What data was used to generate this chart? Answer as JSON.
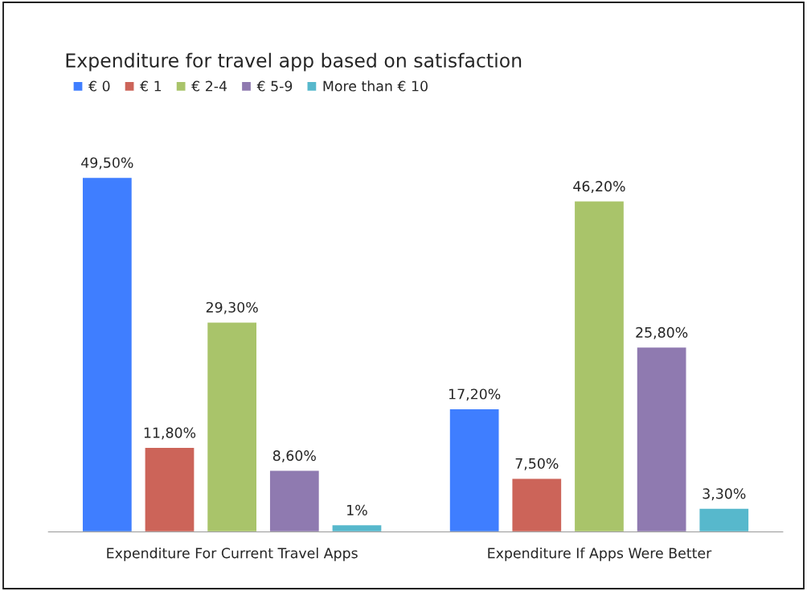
{
  "chart_data": {
    "type": "bar",
    "title": "Expenditure for travel app based on satisfaction",
    "categories": [
      "Expenditure For Current Travel Apps",
      "Expenditure If Apps Were Better"
    ],
    "series": [
      {
        "name": "€ 0",
        "color": "#3f7eff",
        "values": [
          49.5,
          17.2
        ],
        "value_labels": [
          "49,50%",
          "17,20%"
        ]
      },
      {
        "name": "€ 1",
        "color": "#cc6459",
        "values": [
          11.8,
          7.5
        ],
        "value_labels": [
          "11,80%",
          "7,50%"
        ]
      },
      {
        "name": "€ 2-4",
        "color": "#a9c46a",
        "values": [
          29.3,
          46.2
        ],
        "value_labels": [
          "29,30%",
          "46,20%"
        ]
      },
      {
        "name": "€ 5-9",
        "color": "#8f7ab0",
        "values": [
          8.6,
          25.8
        ],
        "value_labels": [
          "8,60%",
          "25,80%"
        ]
      },
      {
        "name": "More than € 10",
        "color": "#57b8cc",
        "values": [
          1,
          3.3
        ],
        "value_labels": [
          "1%",
          "3,30%"
        ]
      }
    ],
    "legend": "top left",
    "grid": false,
    "tick_labels": "x"
  }
}
